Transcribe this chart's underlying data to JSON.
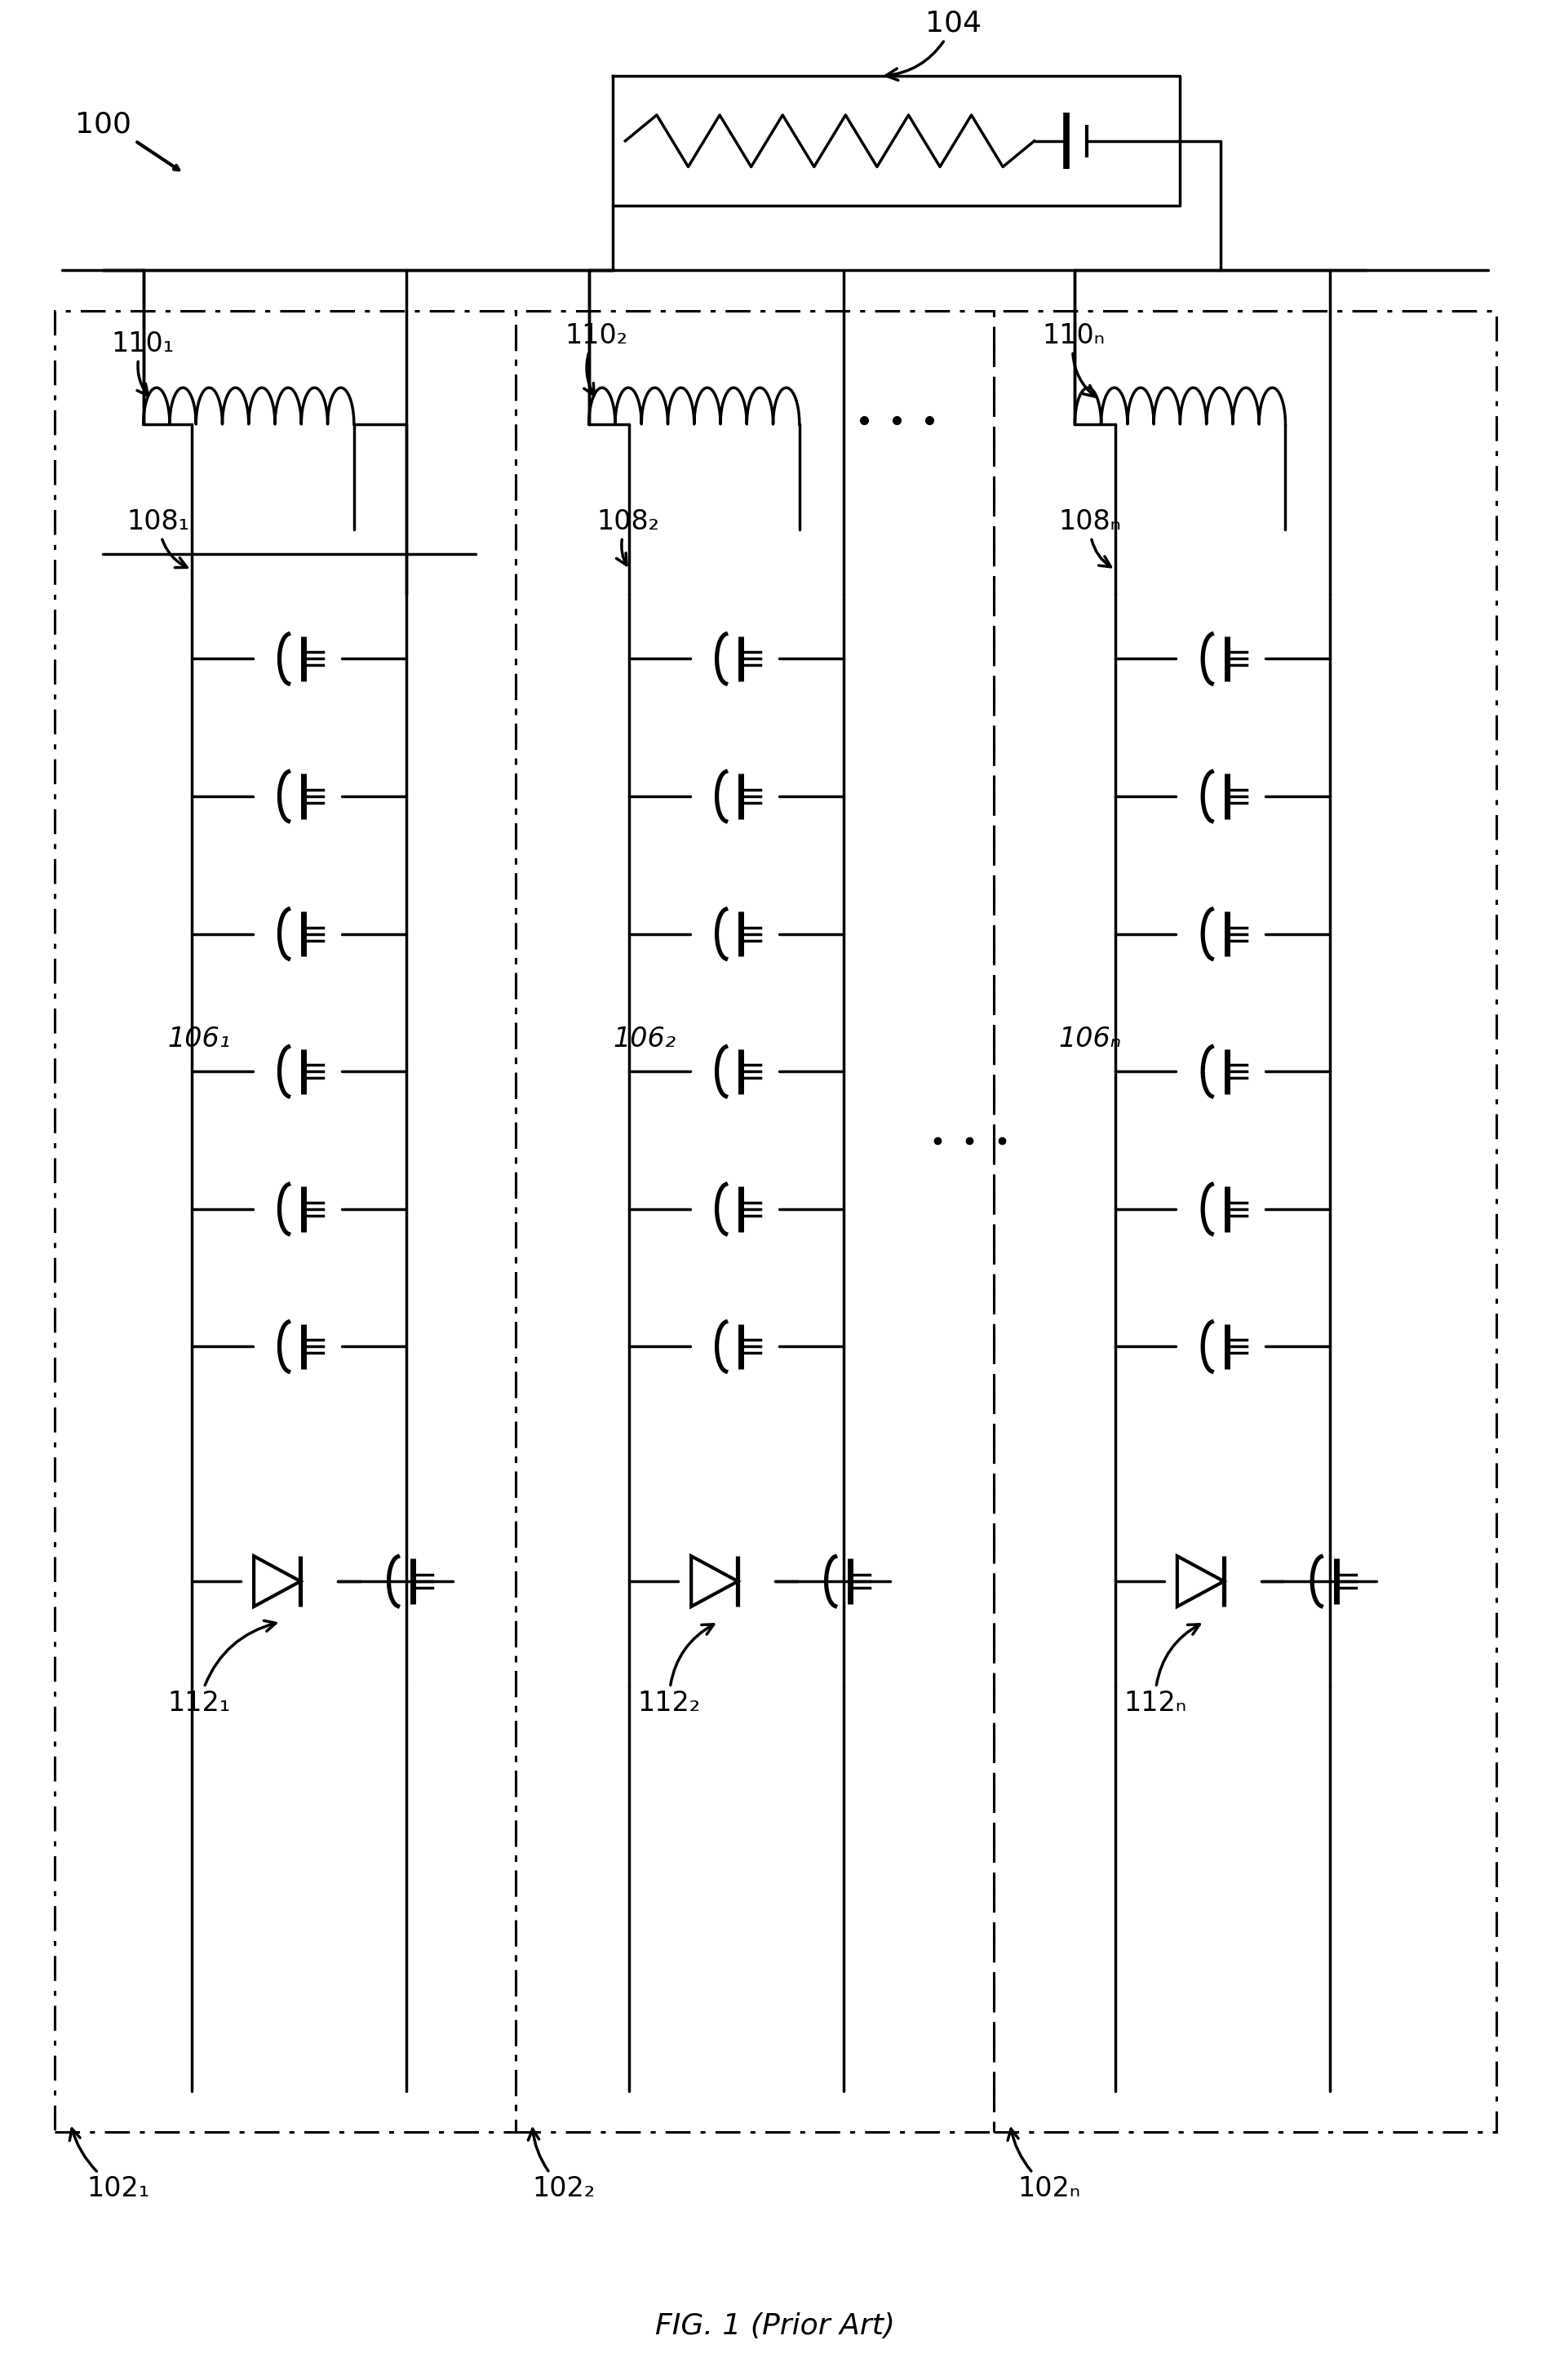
{
  "bg_color": "#ffffff",
  "line_color": "#000000",
  "line_width": 2.5,
  "fig_width": 19.12,
  "fig_height": 29.17,
  "title_label": "FIG. 1 (Prior Art)",
  "label_100": "100",
  "label_104": "104",
  "label_1061": "106₁",
  "label_1062": "106₂",
  "label_106N": "106ₙ",
  "label_1081": "108₁",
  "label_1082": "108₂",
  "label_108N": "108ₙ",
  "label_1101": "110₁",
  "label_1102": "110₂",
  "label_110N": "110ₙ",
  "label_1121": "112₁",
  "label_1122": "112₂",
  "label_112N": "112ₙ",
  "label_1021": "102₁",
  "label_1022": "102₂",
  "label_102N": "102ₙ"
}
